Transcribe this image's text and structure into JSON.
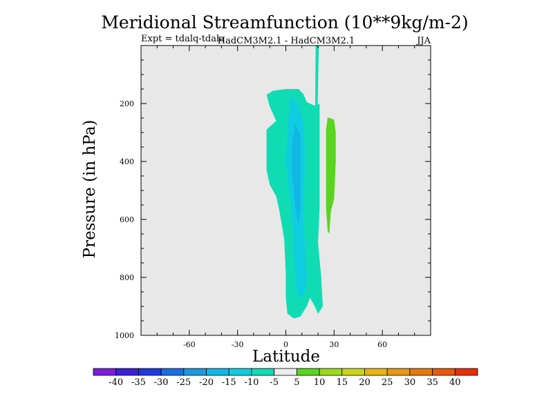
{
  "chart_data": {
    "type": "contour",
    "title": "Meridional Streamfunction (10**9kg/m-2)",
    "subtitle_left": "Expt = tdalq-tdala",
    "subtitle_center": "HadCM3M2.1 - HadCM3M2.1",
    "subtitle_right": "JJA",
    "xlabel": "Latitude",
    "ylabel": "Pressure (in hPa)",
    "xlim": [
      -90,
      90
    ],
    "ylim": [
      1000,
      0
    ],
    "x_ticks": [
      -60,
      -30,
      0,
      30,
      60
    ],
    "x_tick_labels": [
      "-60",
      "-30",
      "0",
      "30",
      "60"
    ],
    "y_ticks": [
      200,
      400,
      600,
      800,
      1000
    ],
    "y_tick_labels": [
      "200",
      "400",
      "600",
      "800",
      "1000"
    ],
    "background_color": "#e8e8e8",
    "colorbar": {
      "labels": [
        "-40",
        "-35",
        "-30",
        "-25",
        "-20",
        "-15",
        "-10",
        "-5",
        "5",
        "10",
        "15",
        "20",
        "25",
        "30",
        "35",
        "40"
      ],
      "colors": [
        "#7a1ed8",
        "#3a1ed8",
        "#1e3ae0",
        "#1c6ee0",
        "#1a9ae0",
        "#10b6e6",
        "#10cce0",
        "#10dcb4",
        "#ececec",
        "#5ad41e",
        "#9cd81e",
        "#cad41a",
        "#e6b414",
        "#e69814",
        "#e6780e",
        "#e65a0e",
        "#e6300a"
      ]
    },
    "regions": [
      {
        "name": "negative-5-to-10",
        "color": "#10dcb4",
        "outline": [
          [
            -12,
            170
          ],
          [
            -8,
            156
          ],
          [
            0,
            150
          ],
          [
            8,
            150
          ],
          [
            11,
            168
          ],
          [
            13,
            195
          ],
          [
            18,
            208
          ],
          [
            21,
            201
          ],
          [
            21,
            380
          ],
          [
            21,
            560
          ],
          [
            20,
            680
          ],
          [
            22,
            800
          ],
          [
            23,
            900
          ],
          [
            20,
            925
          ],
          [
            18,
            900
          ],
          [
            15,
            870
          ],
          [
            13,
            900
          ],
          [
            9,
            935
          ],
          [
            5,
            942
          ],
          [
            1,
            925
          ],
          [
            0,
            870
          ],
          [
            0,
            790
          ],
          [
            -1,
            670
          ],
          [
            -4,
            570
          ],
          [
            -6,
            520
          ],
          [
            -10,
            480
          ],
          [
            -12,
            430
          ],
          [
            -12,
            290
          ],
          [
            -6,
            260
          ],
          [
            -10,
            210
          ]
        ]
      },
      {
        "name": "negative-5-to-10-plume",
        "color": "#10dcb4",
        "outline": [
          [
            18.5,
            0
          ],
          [
            20.5,
            0
          ],
          [
            19.8,
            200
          ],
          [
            19.5,
            250
          ],
          [
            18.2,
            250
          ]
        ]
      },
      {
        "name": "negative-10-to-15",
        "color": "#10cce0",
        "outline": [
          [
            3,
            175
          ],
          [
            7,
            195
          ],
          [
            11,
            260
          ],
          [
            12,
            400
          ],
          [
            11,
            500
          ],
          [
            11,
            600
          ],
          [
            12,
            700
          ],
          [
            13,
            800
          ],
          [
            11,
            870
          ],
          [
            7,
            860
          ],
          [
            6,
            800
          ],
          [
            5,
            700
          ],
          [
            4,
            590
          ],
          [
            2,
            490
          ],
          [
            0,
            400
          ],
          [
            1,
            300
          ],
          [
            2,
            220
          ]
        ]
      },
      {
        "name": "negative-15-to-20",
        "color": "#10b6e6",
        "outline": [
          [
            6,
            270
          ],
          [
            9,
            310
          ],
          [
            9,
            420
          ],
          [
            9,
            560
          ],
          [
            8,
            620
          ],
          [
            6,
            560
          ],
          [
            4,
            450
          ],
          [
            4,
            330
          ]
        ]
      },
      {
        "name": "positive-5-to-10",
        "color": "#5ad41e",
        "outline": [
          [
            26,
            248
          ],
          [
            30,
            255
          ],
          [
            31,
            300
          ],
          [
            31,
            400
          ],
          [
            30,
            530
          ],
          [
            28,
            570
          ],
          [
            27,
            650
          ],
          [
            26,
            640
          ],
          [
            25,
            560
          ],
          [
            25,
            400
          ],
          [
            25,
            290
          ]
        ]
      }
    ]
  }
}
